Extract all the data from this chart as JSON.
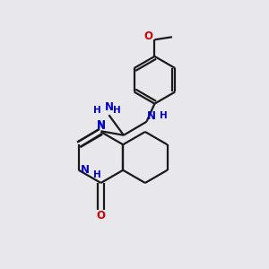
{
  "background_color": "#e8e8ec",
  "bond_color": "#1a1a1a",
  "N_color": "#0000cc",
  "O_color": "#cc0000",
  "line_width": 1.6,
  "figsize": [
    3.0,
    3.0
  ],
  "dpi": 100,
  "xlim": [
    0,
    10
  ],
  "ylim": [
    0,
    10
  ]
}
